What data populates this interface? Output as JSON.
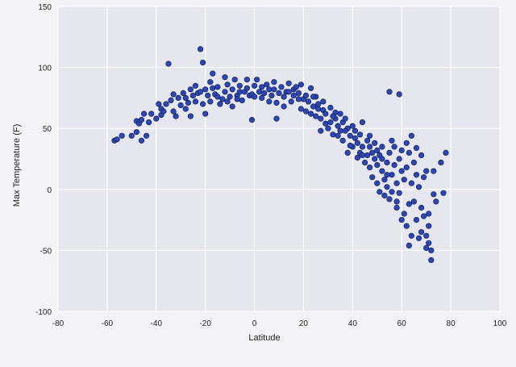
{
  "chart_data": {
    "type": "scatter",
    "title": "",
    "xlabel": "Latitude",
    "ylabel": "Max Temperature (F)",
    "xlim": [
      -80,
      100
    ],
    "ylim": [
      -100,
      150
    ],
    "xticks": [
      "-80",
      "-60",
      "-40",
      "-20",
      "0",
      "20",
      "40",
      "60",
      "80",
      "100"
    ],
    "yticks": [
      "150",
      "100",
      "50",
      "0",
      "-50",
      "-100"
    ],
    "grid": true,
    "colors": {
      "marker": "#2a46b8",
      "marker_edge": "#0e173d",
      "plot_bg": "#e6e6ee",
      "grid": "#ffffff"
    },
    "points": [
      [
        -57,
        40
      ],
      [
        -56,
        41
      ],
      [
        -54,
        44
      ],
      [
        -48,
        47
      ],
      [
        -48,
        56
      ],
      [
        -47,
        54
      ],
      [
        -46,
        57
      ],
      [
        -44,
        44
      ],
      [
        -46,
        40
      ],
      [
        -42,
        62
      ],
      [
        -40,
        58
      ],
      [
        -38,
        61
      ],
      [
        -38,
        66
      ],
      [
        -36,
        70
      ],
      [
        -34,
        73
      ],
      [
        -35,
        103
      ],
      [
        -33,
        64
      ],
      [
        -32,
        60
      ],
      [
        -31,
        75
      ],
      [
        -30,
        69
      ],
      [
        -29,
        79
      ],
      [
        -28,
        66
      ],
      [
        -28,
        75
      ],
      [
        -26,
        82
      ],
      [
        -25,
        77
      ],
      [
        -24,
        72
      ],
      [
        -24,
        85
      ],
      [
        -23,
        79
      ],
      [
        -22,
        80
      ],
      [
        -22,
        115
      ],
      [
        -21,
        70
      ],
      [
        -21,
        104
      ],
      [
        -20,
        82
      ],
      [
        -19,
        77
      ],
      [
        -18,
        72
      ],
      [
        -17,
        83
      ],
      [
        -17,
        95
      ],
      [
        -16,
        78
      ],
      [
        -15,
        84
      ],
      [
        -14,
        70
      ],
      [
        -13,
        74
      ],
      [
        -12,
        80
      ],
      [
        -11,
        86
      ],
      [
        -10,
        76
      ],
      [
        -9,
        82
      ],
      [
        -9,
        68
      ],
      [
        -8,
        90
      ],
      [
        -7,
        77
      ],
      [
        -6,
        85
      ],
      [
        -5,
        73
      ],
      [
        -4,
        80
      ],
      [
        -3,
        83
      ],
      [
        -2,
        77
      ],
      [
        -1,
        78
      ],
      [
        -1,
        57
      ],
      [
        0,
        85
      ],
      [
        1,
        90
      ],
      [
        2,
        80
      ],
      [
        3,
        75
      ],
      [
        4,
        79
      ],
      [
        5,
        86
      ],
      [
        6,
        82
      ],
      [
        7,
        77
      ],
      [
        8,
        88
      ],
      [
        9,
        71
      ],
      [
        9,
        58
      ],
      [
        10,
        79
      ],
      [
        11,
        84
      ],
      [
        12,
        76
      ],
      [
        13,
        80
      ],
      [
        14,
        87
      ],
      [
        15,
        72
      ],
      [
        16,
        82
      ],
      [
        16,
        77
      ],
      [
        17,
        84
      ],
      [
        18,
        79
      ],
      [
        19,
        66
      ],
      [
        19,
        86
      ],
      [
        20,
        74
      ],
      [
        21,
        77
      ],
      [
        22,
        72
      ],
      [
        23,
        62
      ],
      [
        23,
        83
      ],
      [
        24,
        68
      ],
      [
        25,
        76
      ],
      [
        25,
        60
      ],
      [
        26,
        70
      ],
      [
        27,
        58
      ],
      [
        27,
        48
      ],
      [
        28,
        65
      ],
      [
        28,
        72
      ],
      [
        29,
        62
      ],
      [
        30,
        50
      ],
      [
        31,
        55
      ],
      [
        31,
        67
      ],
      [
        32,
        45
      ],
      [
        33,
        58
      ],
      [
        33,
        63
      ],
      [
        34,
        52
      ],
      [
        35,
        48
      ],
      [
        35,
        62
      ],
      [
        36,
        55
      ],
      [
        36,
        40
      ],
      [
        37,
        58
      ],
      [
        38,
        50
      ],
      [
        38,
        30
      ],
      [
        39,
        44
      ],
      [
        40,
        52
      ],
      [
        40,
        35
      ],
      [
        41,
        48
      ],
      [
        42,
        38
      ],
      [
        42,
        26
      ],
      [
        43,
        45
      ],
      [
        43,
        30
      ],
      [
        44,
        55
      ],
      [
        44,
        35
      ],
      [
        45,
        22
      ],
      [
        46,
        40
      ],
      [
        46,
        28
      ],
      [
        47,
        18
      ],
      [
        47,
        35
      ],
      [
        48,
        30
      ],
      [
        48,
        10
      ],
      [
        49,
        25
      ],
      [
        49,
        38
      ],
      [
        50,
        20
      ],
      [
        50,
        5
      ],
      [
        51,
        -2
      ],
      [
        51,
        28
      ],
      [
        52,
        15
      ],
      [
        52,
        35
      ],
      [
        53,
        8
      ],
      [
        53,
        -5
      ],
      [
        54,
        22
      ],
      [
        54,
        2
      ],
      [
        55,
        30
      ],
      [
        55,
        -8
      ],
      [
        55,
        80
      ],
      [
        56,
        12
      ],
      [
        56,
        -2
      ],
      [
        57,
        20
      ],
      [
        57,
        35
      ],
      [
        58,
        5
      ],
      [
        58,
        -10
      ],
      [
        59,
        25
      ],
      [
        59,
        -3
      ],
      [
        59,
        78
      ],
      [
        60,
        15
      ],
      [
        60,
        32
      ],
      [
        61,
        -20
      ],
      [
        61,
        8
      ],
      [
        62,
        18
      ],
      [
        62,
        -30
      ],
      [
        63,
        -46
      ],
      [
        63,
        30
      ],
      [
        64,
        5
      ],
      [
        64,
        -38
      ],
      [
        65,
        -10
      ],
      [
        65,
        22
      ],
      [
        66,
        -25
      ],
      [
        66,
        12
      ],
      [
        67,
        2
      ],
      [
        67,
        -40
      ],
      [
        68,
        -15
      ],
      [
        68,
        -35
      ],
      [
        69,
        -22
      ],
      [
        69,
        10
      ],
      [
        70,
        -38
      ],
      [
        70,
        -48
      ],
      [
        71,
        -30
      ],
      [
        71,
        -44
      ],
      [
        72,
        -50
      ],
      [
        72,
        -58
      ],
      [
        73,
        -4
      ],
      [
        73,
        15
      ],
      [
        76,
        22
      ],
      [
        77,
        -3
      ],
      [
        78,
        30
      ],
      [
        -50,
        44
      ],
      [
        -45,
        62
      ],
      [
        -43,
        55
      ],
      [
        -39,
        70
      ],
      [
        -37,
        64
      ],
      [
        -33,
        78
      ],
      [
        -27,
        71
      ],
      [
        -26,
        60
      ],
      [
        -20,
        62
      ],
      [
        -18,
        88
      ],
      [
        -15,
        76
      ],
      [
        -12,
        92
      ],
      [
        -11,
        72
      ],
      [
        -7,
        74
      ],
      [
        -6,
        80
      ],
      [
        -3,
        90
      ],
      [
        0,
        76
      ],
      [
        3,
        84
      ],
      [
        6,
        72
      ],
      [
        8,
        82
      ],
      [
        12,
        68
      ],
      [
        14,
        80
      ],
      [
        18,
        74
      ],
      [
        21,
        64
      ],
      [
        24,
        76
      ],
      [
        26,
        66
      ],
      [
        29,
        54
      ],
      [
        32,
        60
      ],
      [
        34,
        44
      ],
      [
        37,
        48
      ],
      [
        39,
        36
      ],
      [
        41,
        42
      ],
      [
        44,
        28
      ],
      [
        47,
        44
      ],
      [
        50,
        32
      ],
      [
        52,
        25
      ],
      [
        54,
        12
      ],
      [
        56,
        40
      ],
      [
        58,
        -15
      ],
      [
        60,
        -25
      ],
      [
        62,
        38
      ],
      [
        63,
        -12
      ],
      [
        64,
        44
      ],
      [
        66,
        34
      ],
      [
        68,
        28
      ],
      [
        70,
        15
      ],
      [
        71,
        -20
      ],
      [
        74,
        -10
      ]
    ]
  }
}
